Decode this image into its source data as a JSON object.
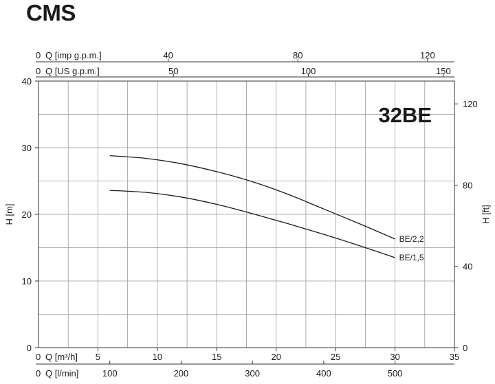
{
  "brand": "CMS",
  "chart_data": {
    "type": "line",
    "title": "32BE",
    "x": {
      "label": "Q [m³/h]",
      "range": [
        0,
        35
      ],
      "ticks": [
        0,
        5,
        10,
        15,
        20,
        25,
        30,
        35
      ],
      "grid_step": 2.5
    },
    "y_left": {
      "label": "H [m]",
      "range": [
        0,
        40
      ],
      "ticks": [
        0,
        10,
        20,
        30,
        40
      ],
      "grid_step": 5
    },
    "y_right": {
      "label": "H [ft]",
      "range": [
        0,
        131.234
      ],
      "ticks": [
        0,
        40,
        80,
        120
      ]
    },
    "secondary_x_axes": [
      {
        "label": "Q [l/min]",
        "position": "bottom",
        "origin": "0",
        "ticks": [
          100,
          200,
          300,
          400,
          500
        ],
        "m3h_per_unit": 0.06
      },
      {
        "label": "Q [imp g.p.m.]",
        "position": "top",
        "origin": "0",
        "ticks": [
          40,
          80,
          120
        ],
        "m3h_per_unit": 0.2728
      },
      {
        "label": "Q [US g.p.m.]",
        "position": "top",
        "origin": "0",
        "ticks": [
          50,
          100,
          150
        ],
        "m3h_per_unit": 0.2271
      }
    ],
    "series": [
      {
        "name": "BE/2,2",
        "x": [
          6,
          9,
          12,
          15,
          18,
          21,
          24,
          27,
          30
        ],
        "y": [
          28.8,
          28.4,
          27.6,
          26.4,
          24.9,
          23.0,
          20.8,
          18.6,
          16.3
        ]
      },
      {
        "name": "BE/1,5",
        "x": [
          6,
          9,
          12,
          15,
          18,
          21,
          24,
          27,
          30
        ],
        "y": [
          23.6,
          23.3,
          22.6,
          21.5,
          20.1,
          18.6,
          17.0,
          15.3,
          13.5
        ]
      }
    ],
    "grid": true
  }
}
